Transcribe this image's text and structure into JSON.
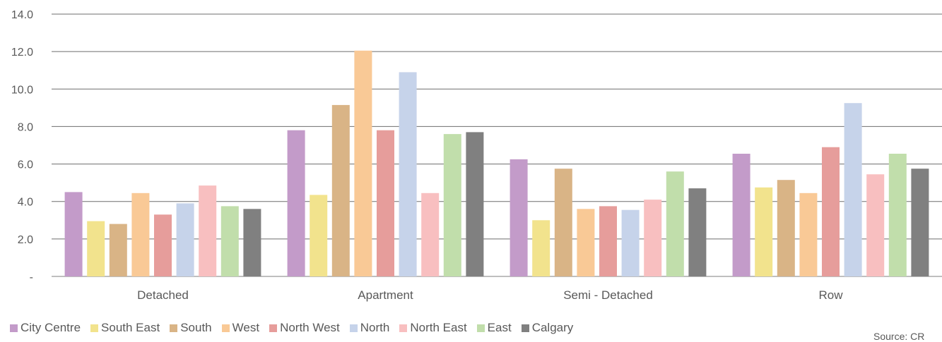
{
  "chart_data": {
    "type": "bar",
    "categories": [
      "Detached",
      "Apartment",
      "Semi - Detached",
      "Row"
    ],
    "ylim": [
      0,
      14
    ],
    "yticks": [
      "-",
      "2.0",
      "4.0",
      "6.0",
      "8.0",
      "10.0",
      "12.0",
      "14.0"
    ],
    "grid": true,
    "legend_position": "bottom-left",
    "series": [
      {
        "name": "City Centre",
        "color": "#c39bc9",
        "values": [
          4.5,
          7.8,
          6.25,
          6.55
        ]
      },
      {
        "name": "South East",
        "color": "#f2e38d",
        "values": [
          2.95,
          4.35,
          3.0,
          4.75
        ]
      },
      {
        "name": "South",
        "color": "#d9b486",
        "values": [
          2.8,
          9.15,
          5.75,
          5.15
        ]
      },
      {
        "name": "West",
        "color": "#f9c996",
        "values": [
          4.45,
          12.05,
          3.6,
          4.45
        ]
      },
      {
        "name": "North West",
        "color": "#e69d9b",
        "values": [
          3.3,
          7.8,
          3.75,
          6.9
        ]
      },
      {
        "name": "North",
        "color": "#c6d3ea",
        "values": [
          3.9,
          10.9,
          3.55,
          9.25
        ]
      },
      {
        "name": "North East",
        "color": "#f8bfc0",
        "values": [
          4.85,
          4.45,
          4.1,
          5.45
        ]
      },
      {
        "name": "East",
        "color": "#c1deab",
        "values": [
          3.75,
          7.6,
          5.6,
          6.55
        ]
      },
      {
        "name": "Calgary",
        "color": "#808080",
        "values": [
          3.6,
          7.7,
          4.7,
          5.75
        ]
      }
    ],
    "source_text": "Source: CR"
  }
}
